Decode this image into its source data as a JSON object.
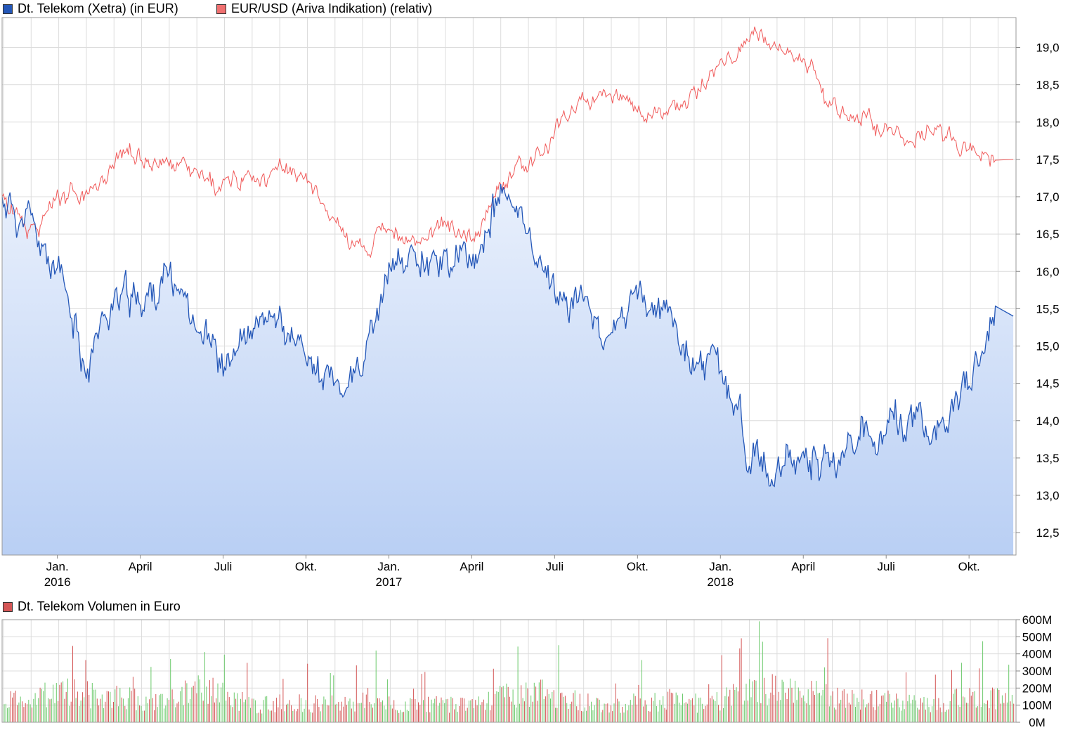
{
  "legend": {
    "series1": "Dt. Telekom (Xetra) (in EUR)",
    "series2": "EUR/USD (Ariva Indikation) (relativ)",
    "volume": "Dt. Telekom Volumen in Euro"
  },
  "colors": {
    "telekom_line": "#2457b8",
    "telekom_fill_top": "#e9f0fc",
    "telekom_fill_bottom": "#b9cff4",
    "eurusd_line": "#f05a5a",
    "volume_up": "#6bc96b",
    "volume_down": "#d45555",
    "grid": "#dcdcdc"
  },
  "x_ticks": [
    {
      "label": "Jan.",
      "year": "2016"
    },
    {
      "label": "April",
      "year": ""
    },
    {
      "label": "Juli",
      "year": ""
    },
    {
      "label": "Okt.",
      "year": ""
    },
    {
      "label": "Jan.",
      "year": "2017"
    },
    {
      "label": "April",
      "year": ""
    },
    {
      "label": "Juli",
      "year": ""
    },
    {
      "label": "Okt.",
      "year": ""
    },
    {
      "label": "Jan.",
      "year": "2018"
    },
    {
      "label": "April",
      "year": ""
    },
    {
      "label": "Juli",
      "year": ""
    },
    {
      "label": "Okt.",
      "year": ""
    }
  ],
  "chart_data": [
    {
      "type": "area",
      "series": [
        {
          "name": "Dt. Telekom (Xetra) (in EUR)",
          "x": [
            "2015-11",
            "2015-12",
            "2016-01",
            "2016-02",
            "2016-03",
            "2016-04",
            "2016-05",
            "2016-06",
            "2016-07",
            "2016-08",
            "2016-09",
            "2016-10",
            "2016-11",
            "2016-12",
            "2017-01",
            "2017-02",
            "2017-03",
            "2017-04",
            "2017-05",
            "2017-06",
            "2017-07",
            "2017-08",
            "2017-09",
            "2017-10",
            "2017-11",
            "2017-12",
            "2018-01",
            "2018-02",
            "2018-03",
            "2018-04",
            "2018-05",
            "2018-06",
            "2018-07",
            "2018-08",
            "2018-09",
            "2018-10",
            "2018-11"
          ],
          "values": [
            17.0,
            16.6,
            15.9,
            14.8,
            15.6,
            15.6,
            15.9,
            15.5,
            14.7,
            15.1,
            15.3,
            14.9,
            14.4,
            14.6,
            15.9,
            16.3,
            16.2,
            16.1,
            17.0,
            16.6,
            15.7,
            15.6,
            15.1,
            15.6,
            15.4,
            14.8,
            14.7,
            13.7,
            13.1,
            13.6,
            13.5,
            13.6,
            14.0,
            14.0,
            13.9,
            14.4,
            15.4
          ]
        },
        {
          "name": "EUR/USD (Ariva Indikation) (relativ)",
          "x": [
            "2015-11",
            "2015-12",
            "2016-01",
            "2016-02",
            "2016-03",
            "2016-04",
            "2016-05",
            "2016-06",
            "2016-07",
            "2016-08",
            "2016-09",
            "2016-10",
            "2016-11",
            "2016-12",
            "2017-01",
            "2017-02",
            "2017-03",
            "2017-04",
            "2017-05",
            "2017-06",
            "2017-07",
            "2017-08",
            "2017-09",
            "2017-10",
            "2017-11",
            "2017-12",
            "2018-01",
            "2018-02",
            "2018-03",
            "2018-04",
            "2018-05",
            "2018-06",
            "2018-07",
            "2018-08",
            "2018-09",
            "2018-10",
            "2018-11"
          ],
          "values": [
            17.0,
            16.6,
            16.9,
            17.0,
            17.4,
            17.6,
            17.4,
            17.3,
            17.1,
            17.3,
            17.3,
            17.2,
            16.7,
            16.3,
            16.5,
            16.4,
            16.6,
            16.5,
            17.1,
            17.4,
            17.8,
            18.3,
            18.4,
            18.2,
            18.1,
            18.4,
            18.8,
            19.1,
            19.0,
            18.9,
            18.1,
            18.0,
            18.0,
            17.8,
            17.9,
            17.7,
            17.5
          ]
        }
      ],
      "yaxis_ticks": [
        "12,5",
        "13,0",
        "13,5",
        "14,0",
        "14,5",
        "15,0",
        "15,5",
        "16,0",
        "16,5",
        "17,0",
        "17,5",
        "18,0",
        "18,5",
        "19,0"
      ],
      "ylim": [
        12.2,
        19.4
      ],
      "grid": true,
      "legend_position": "top-left"
    },
    {
      "type": "bar",
      "series": [
        {
          "name": "Dt. Telekom Volumen in Euro",
          "x": [
            "2015-11",
            "2015-12",
            "2016-01",
            "2016-02",
            "2016-03",
            "2016-04",
            "2016-05",
            "2016-06",
            "2016-07",
            "2016-08",
            "2016-09",
            "2016-10",
            "2016-11",
            "2016-12",
            "2017-01",
            "2017-02",
            "2017-03",
            "2017-04",
            "2017-05",
            "2017-06",
            "2017-07",
            "2017-08",
            "2017-09",
            "2017-10",
            "2017-11",
            "2017-12",
            "2018-01",
            "2018-02",
            "2018-03",
            "2018-04",
            "2018-05",
            "2018-06",
            "2018-07",
            "2018-08",
            "2018-09",
            "2018-10",
            "2018-11"
          ],
          "values": [
            150,
            160,
            200,
            180,
            170,
            140,
            150,
            220,
            160,
            110,
            130,
            120,
            130,
            150,
            120,
            110,
            120,
            130,
            180,
            200,
            150,
            120,
            120,
            130,
            150,
            110,
            170,
            220,
            200,
            180,
            140,
            150,
            130,
            110,
            150,
            170,
            140
          ]
        }
      ],
      "unit": "M",
      "yaxis_ticks": [
        "0M",
        "100M",
        "200M",
        "300M",
        "400M",
        "500M",
        "600M"
      ],
      "ylim": [
        0,
        600
      ],
      "grid": true
    }
  ]
}
